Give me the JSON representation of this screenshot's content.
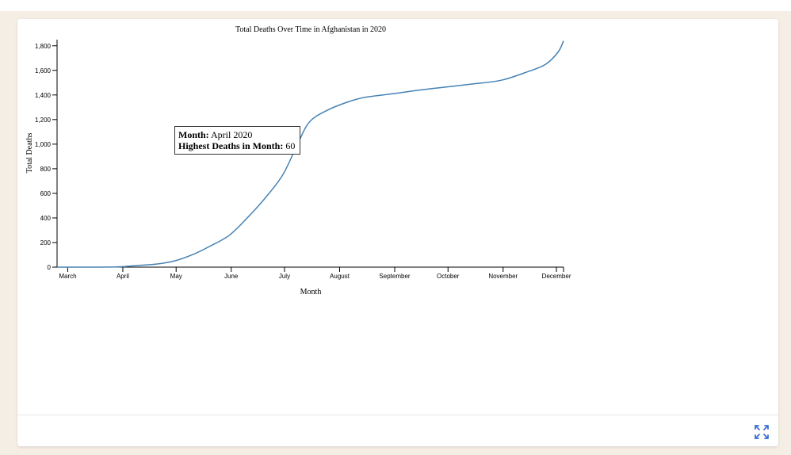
{
  "page": {
    "expand_icon": "expand-icon",
    "accent_color": "#3b6fd6",
    "background_color": "#f5eee4"
  },
  "tooltip": {
    "month_label": "Month:",
    "month_value": "April 2020",
    "deaths_label": "Highest Deaths in Month:",
    "deaths_value": "60"
  },
  "chart_data": {
    "type": "line",
    "title": "Total Deaths Over Time in Afghanistan in 2020",
    "xlabel": "Month",
    "ylabel": "Total Deaths",
    "line_color": "#4682b4",
    "x_ticks": [
      "March",
      "April",
      "May",
      "June",
      "July",
      "August",
      "September",
      "October",
      "November",
      "December"
    ],
    "y_ticks": [
      "0",
      "200",
      "400",
      "600",
      "800",
      "1,000",
      "1,200",
      "1,400",
      "1,600",
      "1,800"
    ],
    "ylim": [
      0,
      1850
    ],
    "xlim": [
      "2020-02-24",
      "2020-12-05"
    ],
    "grid": false,
    "series": [
      {
        "values": [
          [
            "2020-02-24",
            0
          ],
          [
            "2020-03-15",
            0
          ],
          [
            "2020-03-25",
            1
          ],
          [
            "2020-04-01",
            4
          ],
          [
            "2020-04-10",
            14
          ],
          [
            "2020-04-20",
            25
          ],
          [
            "2020-04-30",
            50
          ],
          [
            "2020-05-10",
            100
          ],
          [
            "2020-05-20",
            170
          ],
          [
            "2020-05-31",
            260
          ],
          [
            "2020-06-10",
            400
          ],
          [
            "2020-06-20",
            560
          ],
          [
            "2020-06-30",
            750
          ],
          [
            "2020-07-08",
            990
          ],
          [
            "2020-07-15",
            1180
          ],
          [
            "2020-07-25",
            1275
          ],
          [
            "2020-08-05",
            1340
          ],
          [
            "2020-08-15",
            1380
          ],
          [
            "2020-08-31",
            1410
          ],
          [
            "2020-09-15",
            1440
          ],
          [
            "2020-09-30",
            1465
          ],
          [
            "2020-10-15",
            1490
          ],
          [
            "2020-10-31",
            1520
          ],
          [
            "2020-11-15",
            1590
          ],
          [
            "2020-11-25",
            1650
          ],
          [
            "2020-12-02",
            1750
          ],
          [
            "2020-12-05",
            1840
          ]
        ]
      }
    ]
  }
}
